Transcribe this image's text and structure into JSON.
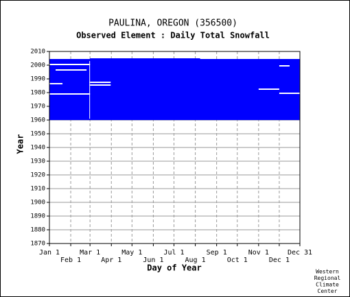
{
  "chart_data": {
    "type": "heatmap",
    "title": "PAULINA, OREGON   (356500)",
    "subtitle": "Observed Element : Daily Total Snowfall",
    "xlabel": "Day of Year",
    "ylabel": "Year",
    "xlim": [
      1,
      365
    ],
    "ylim": [
      1870,
      2010
    ],
    "xticks": [
      {
        "value": 1,
        "label": "Jan 1"
      },
      {
        "value": 32,
        "label": "Feb 1"
      },
      {
        "value": 60,
        "label": "Mar 1"
      },
      {
        "value": 91,
        "label": "Apr 1"
      },
      {
        "value": 121,
        "label": "May 1"
      },
      {
        "value": 152,
        "label": "Jun 1"
      },
      {
        "value": 182,
        "label": "Jul 1"
      },
      {
        "value": 213,
        "label": "Aug 1"
      },
      {
        "value": 244,
        "label": "Sep 1"
      },
      {
        "value": 274,
        "label": "Oct 1"
      },
      {
        "value": 305,
        "label": "Nov 1"
      },
      {
        "value": 335,
        "label": "Dec 1"
      },
      {
        "value": 365,
        "label": "Dec 31"
      }
    ],
    "yticks": [
      1870,
      1880,
      1890,
      1900,
      1910,
      1920,
      1930,
      1940,
      1950,
      1960,
      1970,
      1980,
      1990,
      2000,
      2010
    ],
    "color": "#0000ff",
    "gap_color": "#ffffff",
    "grid": true,
    "blocks": [
      {
        "x": [
          1,
          365
        ],
        "y": [
          1960,
          2004.5
        ]
      },
      {
        "x": [
          60,
          220
        ],
        "y": [
          2004.5,
          2005
        ]
      }
    ],
    "gaps": [
      {
        "x": [
          59,
          60
        ],
        "y": [
          1961,
          2003
        ]
      },
      {
        "x": [
          1,
          60
        ],
        "y": [
          1978.5,
          1979.5
        ]
      },
      {
        "x": [
          1,
          60
        ],
        "y": [
          2000,
          2001
        ]
      },
      {
        "x": [
          10,
          55
        ],
        "y": [
          1996,
          1997
        ]
      },
      {
        "x": [
          60,
          90
        ],
        "y": [
          1987,
          1988
        ]
      },
      {
        "x": [
          60,
          90
        ],
        "y": [
          1985,
          1986
        ]
      },
      {
        "x": [
          305,
          335
        ],
        "y": [
          1982,
          1983
        ]
      },
      {
        "x": [
          335,
          365
        ],
        "y": [
          1979,
          1980
        ]
      },
      {
        "x": [
          335,
          350
        ],
        "y": [
          1999,
          2000
        ]
      },
      {
        "x": [
          1,
          20
        ],
        "y": [
          1986,
          1987
        ]
      }
    ],
    "credit": [
      "Western",
      "Regional",
      "Climate",
      "Center"
    ]
  }
}
